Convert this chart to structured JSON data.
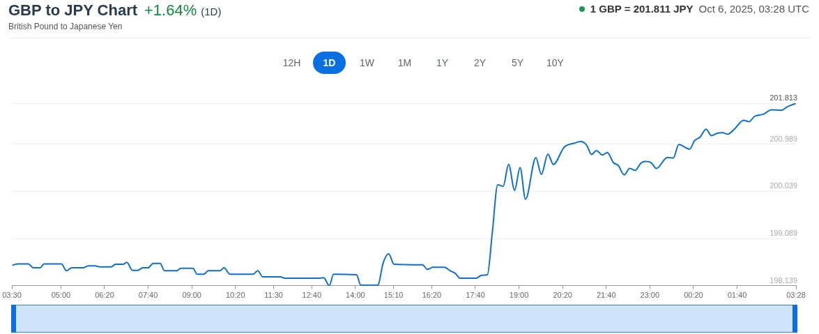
{
  "chart_data": {
    "type": "line",
    "title": "GBP to JPY Chart",
    "subtitle": "British Pound to Japanese Yen",
    "annotations": [
      "+1.64%",
      "(1D)",
      "1 GBP = 201.811 JPY",
      "Oct 6, 2025, 03:28 UTC",
      "12H",
      "1D",
      "1W",
      "1M",
      "1Y",
      "2Y",
      "5Y",
      "10Y"
    ],
    "x": [
      "2025-10-05T03:31",
      "2025-10-05T03:41",
      "2025-10-05T04:00",
      "2025-10-05T04:09",
      "2025-10-05T04:22",
      "2025-10-05T04:29",
      "2025-10-05T05:01",
      "2025-10-05T05:10",
      "2025-10-05T05:20",
      "2025-10-05T05:41",
      "2025-10-05T05:50",
      "2025-10-05T06:03",
      "2025-10-05T06:11",
      "2025-10-05T06:32",
      "2025-10-05T06:40",
      "2025-10-05T06:54",
      "2025-10-05T07:01",
      "2025-10-05T07:11",
      "2025-10-05T07:21",
      "2025-10-05T07:30",
      "2025-10-05T07:40",
      "2025-10-05T07:49",
      "2025-10-05T08:02",
      "2025-10-05T08:10",
      "2025-10-05T08:32",
      "2025-10-05T08:40",
      "2025-10-05T09:02",
      "2025-10-05T09:10",
      "2025-10-05T09:22",
      "2025-10-05T09:30",
      "2025-10-05T09:52",
      "2025-10-05T09:59",
      "2025-10-05T10:10",
      "2025-10-05T10:52",
      "2025-10-05T11:01",
      "2025-10-05T11:10",
      "2025-10-05T11:42",
      "2025-10-05T11:51",
      "2025-10-05T12:51",
      "2025-10-05T13:02",
      "2025-10-05T13:12",
      "2025-10-05T13:20",
      "2025-10-05T14:02",
      "2025-10-05T14:10",
      "2025-10-05T14:41",
      "2025-10-05T14:51",
      "2025-10-05T15:01",
      "2025-10-05T15:11",
      "2025-10-05T15:56",
      "2025-10-05T16:03",
      "2025-10-05T16:12",
      "2025-10-05T16:22",
      "2025-10-05T16:43",
      "2025-10-05T16:54",
      "2025-10-05T17:03",
      "2025-10-05T17:12",
      "2025-10-05T17:41",
      "2025-10-05T17:52",
      "2025-10-05T18:02",
      "2025-10-05T18:11",
      "2025-10-05T18:21",
      "2025-10-05T18:31",
      "2025-10-05T18:41",
      "2025-10-05T18:52",
      "2025-10-05T19:02",
      "2025-10-05T19:12",
      "2025-10-05T19:31",
      "2025-10-05T19:41",
      "2025-10-05T19:53",
      "2025-10-05T20:03",
      "2025-10-05T20:23",
      "2025-10-05T20:42",
      "2025-10-05T20:53",
      "2025-10-05T21:04",
      "2025-10-05T21:13",
      "2025-10-05T21:22",
      "2025-10-05T21:33",
      "2025-10-05T21:42",
      "2025-10-05T21:53",
      "2025-10-05T22:02",
      "2025-10-05T22:13",
      "2025-10-05T22:23",
      "2025-10-05T22:33",
      "2025-10-05T22:44",
      "2025-10-05T22:52",
      "2025-10-05T23:02",
      "2025-10-05T23:12",
      "2025-10-05T23:32",
      "2025-10-05T23:43",
      "2025-10-05T23:53",
      "2025-10-06T00:13",
      "2025-10-06T00:22",
      "2025-10-06T00:32",
      "2025-10-06T00:43",
      "2025-10-06T00:53",
      "2025-10-06T01:04",
      "2025-10-06T01:13",
      "2025-10-06T01:23",
      "2025-10-06T01:35",
      "2025-10-06T01:52",
      "2025-10-06T02:02",
      "2025-10-06T02:12",
      "2025-10-06T02:28",
      "2025-10-06T02:43",
      "2025-10-06T03:01",
      "2025-10-06T03:12",
      "2025-10-06T03:28"
    ],
    "series": [
      {
        "color": "#0b6fd3",
        "values": [
          198.55,
          198.58,
          198.58,
          198.5,
          198.5,
          198.58,
          198.58,
          198.44,
          198.5,
          198.5,
          198.54,
          198.54,
          198.52,
          198.52,
          198.57,
          198.57,
          198.61,
          198.45,
          198.45,
          198.5,
          198.5,
          198.59,
          198.59,
          198.44,
          198.44,
          198.49,
          198.49,
          198.37,
          198.37,
          198.44,
          198.44,
          198.5,
          198.37,
          198.37,
          198.44,
          198.32,
          198.32,
          198.29,
          198.29,
          198.3,
          198.14,
          198.37,
          198.36,
          198.15,
          198.15,
          198.6,
          198.78,
          198.57,
          198.56,
          198.56,
          198.47,
          198.51,
          198.51,
          198.44,
          198.39,
          198.29,
          198.29,
          198.35,
          198.36,
          199.2,
          200.17,
          200.14,
          200.58,
          200.06,
          200.52,
          199.88,
          200.72,
          200.38,
          200.79,
          200.58,
          200.93,
          201.01,
          201.04,
          200.97,
          200.78,
          200.86,
          200.77,
          200.82,
          200.62,
          200.56,
          200.37,
          200.5,
          200.46,
          200.61,
          200.64,
          200.62,
          200.5,
          200.72,
          200.71,
          200.98,
          200.89,
          201.06,
          201.13,
          201.29,
          201.16,
          201.21,
          201.22,
          201.19,
          201.29,
          201.47,
          201.44,
          201.55,
          201.59,
          201.68,
          201.67,
          201.74,
          201.81
        ]
      }
    ],
    "xlim": [
      "2025-10-05T03:30",
      "2025-10-06T03:28"
    ],
    "xticks": [
      {
        "value": "2025-10-05T03:30",
        "label": "03:30"
      },
      {
        "value": "2025-10-05T05:00",
        "label": "05:00"
      },
      {
        "value": "2025-10-05T06:20",
        "label": "06:20"
      },
      {
        "value": "2025-10-05T07:40",
        "label": "07:40"
      },
      {
        "value": "2025-10-05T09:00",
        "label": "09:00"
      },
      {
        "value": "2025-10-05T10:20",
        "label": "10:20"
      },
      {
        "value": "2025-10-05T11:30",
        "label": "11:30"
      },
      {
        "value": "2025-10-05T12:40",
        "label": "12:40"
      },
      {
        "value": "2025-10-05T14:00",
        "label": "14:00"
      },
      {
        "value": "2025-10-05T15:10",
        "label": "15:10"
      },
      {
        "value": "2025-10-05T16:20",
        "label": "16:20"
      },
      {
        "value": "2025-10-05T17:40",
        "label": "17:40"
      },
      {
        "value": "2025-10-05T19:00",
        "label": "19:00"
      },
      {
        "value": "2025-10-05T20:20",
        "label": "20:20"
      },
      {
        "value": "2025-10-05T21:40",
        "label": "21:40"
      },
      {
        "value": "2025-10-05T23:00",
        "label": "23:00"
      },
      {
        "value": "2025-10-06T00:20",
        "label": "00:20"
      },
      {
        "value": "2025-10-06T01:40",
        "label": "01:40"
      },
      {
        "value": "2025-10-06T03:28",
        "label": "03:28"
      }
    ],
    "ylim": [
      198.139,
      201.813
    ],
    "yticks": [
      198.139,
      199.089,
      200.039,
      200.989,
      201.813
    ],
    "grid": "y"
  }
}
